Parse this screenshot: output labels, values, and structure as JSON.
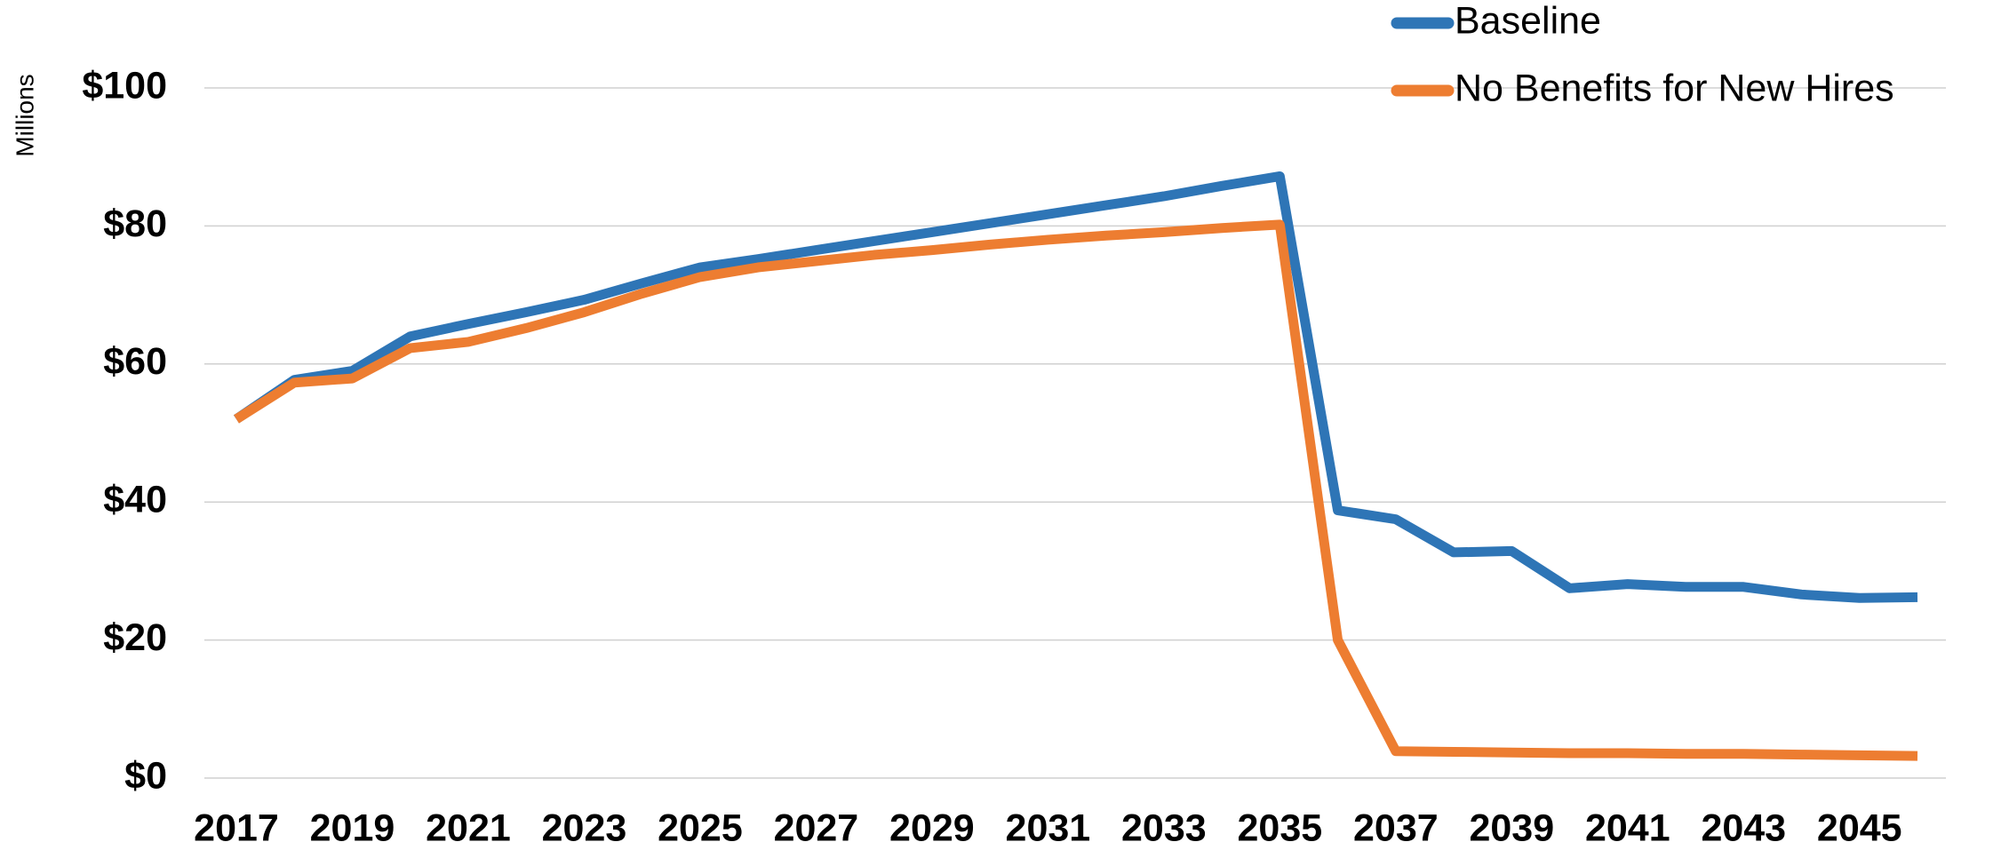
{
  "chart_data": {
    "type": "line",
    "y_label": "Millions",
    "x": [
      2017,
      2018,
      2019,
      2020,
      2021,
      2022,
      2023,
      2024,
      2025,
      2026,
      2027,
      2028,
      2029,
      2030,
      2031,
      2032,
      2033,
      2034,
      2035,
      2036,
      2037,
      2038,
      2039,
      2040,
      2041,
      2042,
      2043,
      2044,
      2045,
      2046
    ],
    "xlim": [
      2017,
      2046
    ],
    "xticks": [
      2017,
      2019,
      2021,
      2023,
      2025,
      2027,
      2029,
      2031,
      2033,
      2035,
      2037,
      2039,
      2041,
      2043,
      2045
    ],
    "ylim": [
      0,
      100
    ],
    "yticks": [
      {
        "value": 0,
        "label": "$0"
      },
      {
        "value": 20,
        "label": "$20"
      },
      {
        "value": 40,
        "label": "$40"
      },
      {
        "value": 60,
        "label": "$60"
      },
      {
        "value": 80,
        "label": "$80"
      },
      {
        "value": 100,
        "label": "$100"
      }
    ],
    "grid": true,
    "legend": "top-right",
    "series": [
      {
        "name": "Baseline",
        "color": "#2e75b6",
        "values": [
          52,
          57.7,
          59,
          64,
          65.8,
          67.5,
          69.3,
          71.7,
          74,
          75.2,
          76.5,
          77.8,
          79.1,
          80.4,
          81.7,
          83,
          84.3,
          85.8,
          87.2,
          38.8,
          37.5,
          32.7,
          32.9,
          27.5,
          28.1,
          27.7,
          27.7,
          26.6,
          26.1,
          26.2
        ]
      },
      {
        "name": "No Benefits for New Hires",
        "color": "#ed7d31",
        "values": [
          52,
          57.3,
          57.9,
          62.3,
          63.2,
          65.2,
          67.5,
          70.2,
          72.6,
          74,
          74.9,
          75.8,
          76.5,
          77.3,
          78,
          78.6,
          79.1,
          79.7,
          80.2,
          20,
          3.9,
          3.8,
          3.7,
          3.6,
          3.6,
          3.5,
          3.5,
          3.4,
          3.3,
          3.2
        ]
      }
    ]
  }
}
